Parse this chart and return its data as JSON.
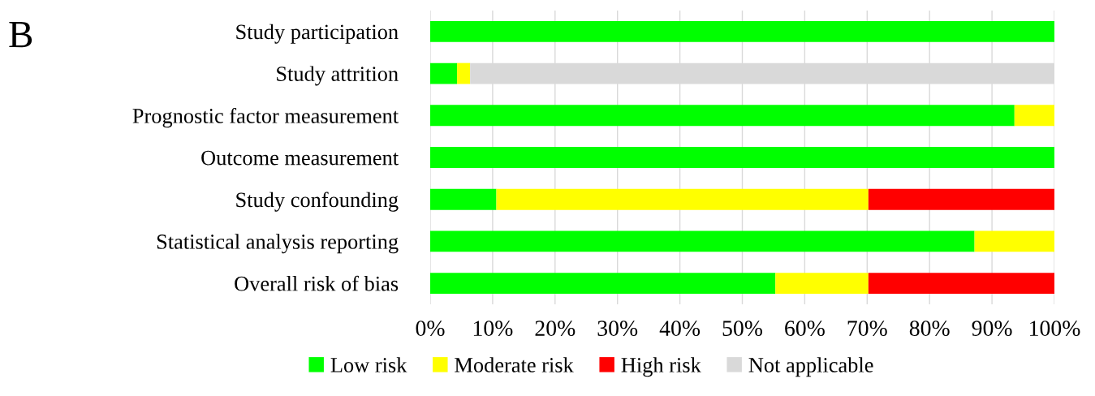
{
  "chart_data": {
    "type": "bar",
    "orientation": "horizontal",
    "stacked": true,
    "title": "B",
    "categories": [
      "Study participation",
      "Study attrition",
      "Prognostic factor measurement",
      "Outcome measurement",
      "Study confounding",
      "Statistical analysis reporting",
      "Overall risk of bias"
    ],
    "series": [
      {
        "name": "Low risk",
        "color": "#00ff00",
        "values": [
          100,
          4.3,
          93.6,
          100,
          10.6,
          87.2,
          55.3
        ]
      },
      {
        "name": "Moderate risk",
        "color": "#ffff00",
        "values": [
          null,
          2.1,
          6.4,
          null,
          59.6,
          12.8,
          14.9
        ]
      },
      {
        "name": "High risk",
        "color": "#ff0000",
        "values": [
          null,
          null,
          null,
          null,
          29.8,
          null,
          29.8
        ]
      },
      {
        "name": "Not applicable",
        "color": "#d9d9d9",
        "values": [
          null,
          93.6,
          null,
          null,
          null,
          null,
          null
        ]
      }
    ],
    "xlim": [
      0,
      100
    ],
    "xticks": [
      {
        "value": 0,
        "label": "0%"
      },
      {
        "value": 10,
        "label": "10%"
      },
      {
        "value": 20,
        "label": "20%"
      },
      {
        "value": 30,
        "label": "30%"
      },
      {
        "value": 40,
        "label": "40%"
      },
      {
        "value": 50,
        "label": "50%"
      },
      {
        "value": 60,
        "label": "60%"
      },
      {
        "value": 70,
        "label": "70%"
      },
      {
        "value": 80,
        "label": "80%"
      },
      {
        "value": 90,
        "label": "90%"
      },
      {
        "value": 100,
        "label": "100%"
      }
    ],
    "grid": "x",
    "legend": "bottom"
  }
}
